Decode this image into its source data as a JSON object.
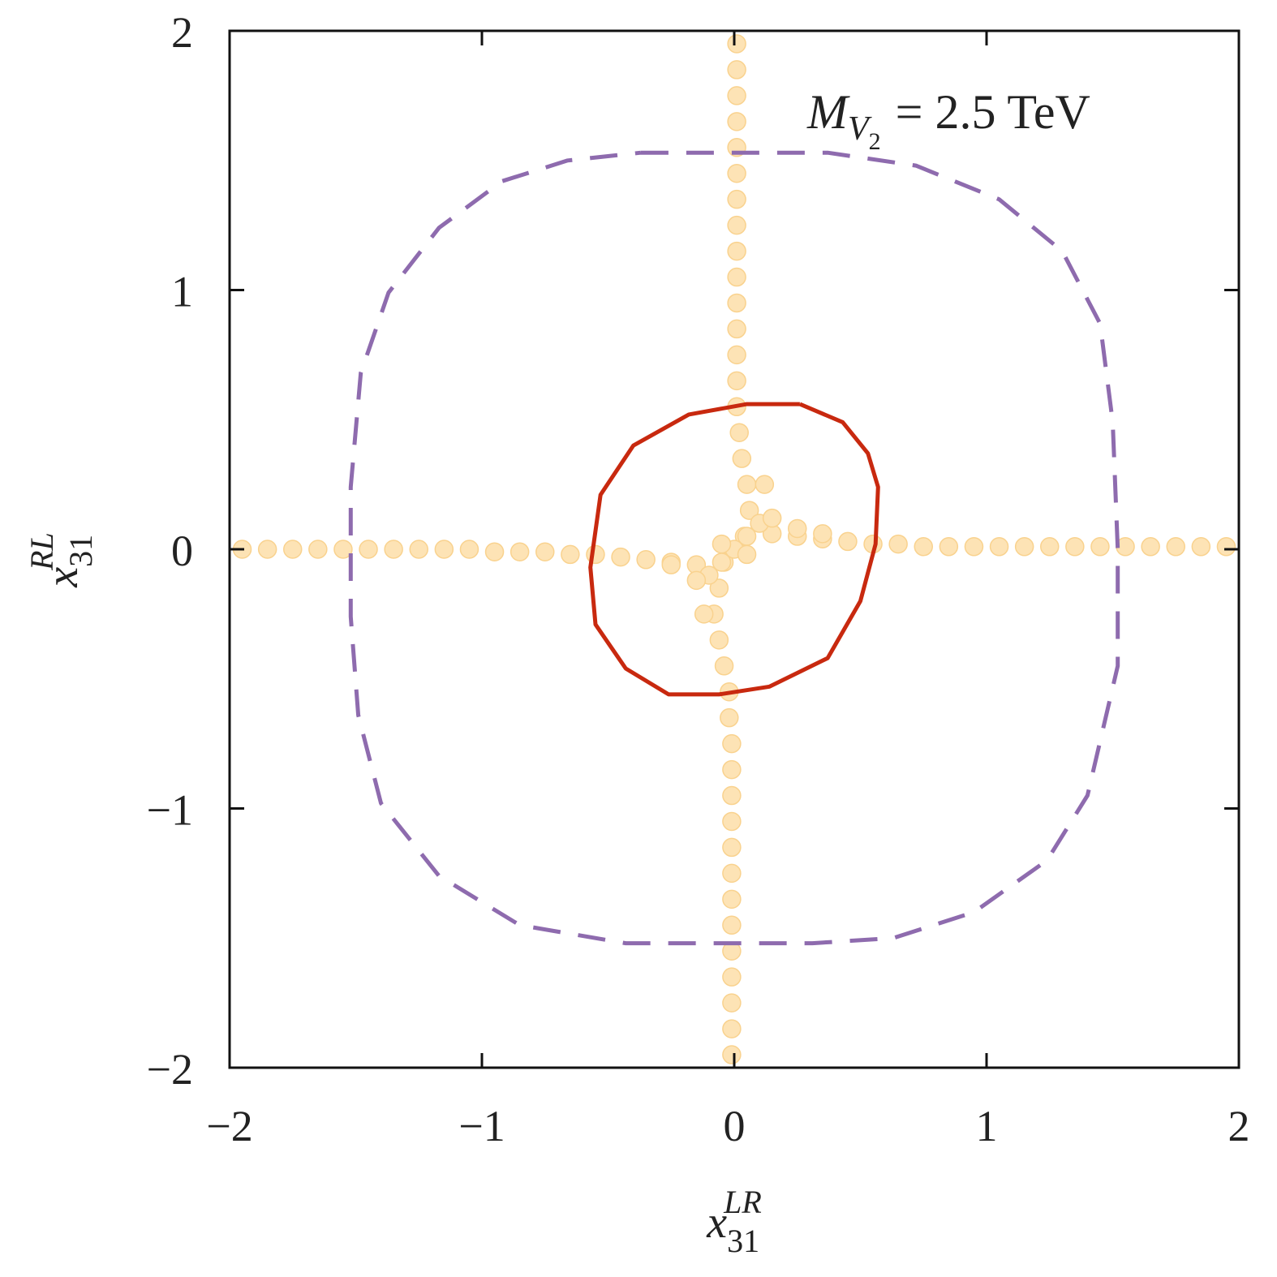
{
  "chart_data": {
    "type": "scatter",
    "xlim": [
      -2,
      2
    ],
    "ylim": [
      -2,
      2
    ],
    "xticks": [
      {
        "value": -2,
        "label": "−2"
      },
      {
        "value": -1,
        "label": "−1"
      },
      0,
      1,
      2
    ],
    "yticks": [
      {
        "value": -2,
        "label": "−2"
      },
      {
        "value": -1,
        "label": "−1"
      },
      0,
      1,
      2
    ],
    "xlabel": {
      "base": "x",
      "sup": "LR",
      "sub": "31"
    },
    "ylabel": {
      "base": "x",
      "sup": "RL",
      "sub": "31"
    },
    "annotation": {
      "base": "M",
      "sub": "V",
      "subsub": "2",
      "rest": "= 2.5 TeV"
    },
    "series": [
      {
        "type": "scatter",
        "color": "#fde3b5",
        "x": [
          0.01,
          0.01,
          0.01,
          0.01,
          0.01,
          0.01,
          0.01,
          0.01,
          0.01,
          0.01,
          0.01,
          0.01,
          0.01,
          0.01,
          0.01,
          0.02,
          0.03,
          0.05,
          0.06,
          0.04,
          -0.04,
          -0.06,
          -0.08,
          -0.06,
          -0.04,
          -0.02,
          -0.02,
          -0.01,
          -0.01,
          -0.01,
          -0.01,
          -0.01,
          -0.01,
          -0.01,
          -0.01,
          -0.01,
          -0.01,
          -0.01,
          -0.01,
          -0.01,
          -1.95,
          -1.85,
          -1.75,
          -1.65,
          -1.55,
          -1.45,
          -1.35,
          -1.25,
          -1.15,
          -1.05,
          -0.95,
          -0.85,
          -0.75,
          -0.65,
          -0.55,
          -0.45,
          -0.35,
          -0.25,
          -0.15,
          -0.05,
          0.05,
          0.15,
          0.25,
          0.35,
          0.45,
          0.55,
          0.65,
          0.75,
          0.85,
          0.95,
          1.05,
          1.15,
          1.25,
          1.35,
          1.45,
          1.55,
          1.65,
          1.75,
          1.85,
          1.95,
          0.1,
          0.15,
          0.25,
          0.35,
          -0.1,
          -0.15,
          -0.25,
          0,
          0.05,
          -0.05,
          0.12,
          -0.12
        ],
        "y": [
          1.95,
          1.85,
          1.75,
          1.65,
          1.55,
          1.45,
          1.35,
          1.25,
          1.15,
          1.05,
          0.95,
          0.85,
          0.75,
          0.65,
          0.55,
          0.45,
          0.35,
          0.25,
          0.15,
          0.05,
          -0.05,
          -0.15,
          -0.25,
          -0.35,
          -0.45,
          -0.55,
          -0.65,
          -0.75,
          -0.85,
          -0.95,
          -1.05,
          -1.15,
          -1.25,
          -1.35,
          -1.45,
          -1.55,
          -1.65,
          -1.75,
          -1.85,
          -1.95,
          0,
          0,
          0,
          0,
          0,
          0,
          0,
          0,
          0,
          0,
          -0.01,
          -0.01,
          -0.01,
          -0.02,
          -0.02,
          -0.03,
          -0.04,
          -0.05,
          -0.06,
          -0.05,
          0.05,
          0.06,
          0.05,
          0.04,
          0.03,
          0.02,
          0.02,
          0.01,
          0.01,
          0.01,
          0.01,
          0.01,
          0.01,
          0.01,
          0.01,
          0.01,
          0.01,
          0.01,
          0.01,
          0.01,
          0.1,
          0.12,
          0.08,
          0.06,
          -0.1,
          -0.12,
          -0.06,
          0,
          -0.02,
          0.02,
          0.25,
          -0.25
        ]
      },
      {
        "type": "line",
        "color": "#c8290f",
        "dash": false,
        "x": [
          0.26,
          0.05,
          -0.18,
          -0.4,
          -0.53,
          -0.57,
          -0.55,
          -0.43,
          -0.26,
          -0.06,
          0.14,
          0.37,
          0.5,
          0.56,
          0.57,
          0.53,
          0.43,
          0.26
        ],
        "y": [
          0.56,
          0.56,
          0.52,
          0.4,
          0.21,
          -0.07,
          -0.29,
          -0.46,
          -0.56,
          -0.56,
          -0.53,
          -0.42,
          -0.2,
          0.02,
          0.24,
          0.37,
          0.49,
          0.56
        ]
      },
      {
        "type": "line",
        "color": "#8e6bae",
        "dash": true,
        "x": [
          -0.37,
          0,
          0.37,
          0.72,
          1.05,
          1.3,
          1.45,
          1.5,
          1.52,
          1.52,
          1.4,
          1.24,
          0.95,
          0.63,
          0.31,
          0,
          -0.43,
          -0.85,
          -1.17,
          -1.4,
          -1.49,
          -1.52,
          -1.52,
          -1.48,
          -1.37,
          -1.17,
          -0.92,
          -0.66,
          -0.37
        ],
        "y": [
          1.53,
          1.53,
          1.53,
          1.48,
          1.35,
          1.15,
          0.87,
          0.49,
          0,
          -0.45,
          -0.95,
          -1.2,
          -1.4,
          -1.5,
          -1.52,
          -1.52,
          -1.52,
          -1.45,
          -1.26,
          -0.98,
          -0.64,
          -0.26,
          0.24,
          0.68,
          0.99,
          1.24,
          1.42,
          1.5,
          1.53
        ]
      }
    ]
  }
}
